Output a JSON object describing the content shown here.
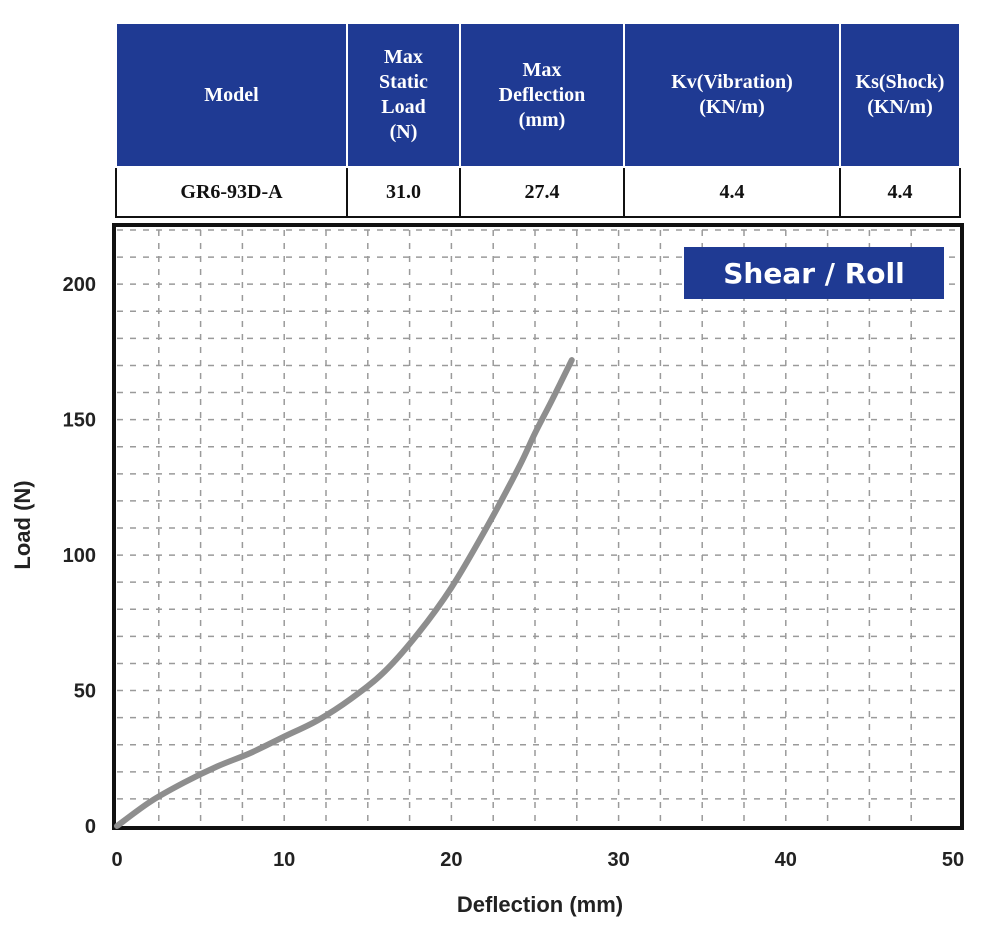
{
  "table": {
    "headers": [
      "Model",
      "Max\nStatic\nLoad\n(N)",
      "Max\nDeflection\n(mm)",
      "Kv(Vibration)\n(KN/m)",
      "Ks(Shock)\n(KN/m)"
    ],
    "row": [
      "GR6-93D-A",
      "31.0",
      "27.4",
      "4.4",
      "4.4"
    ]
  },
  "chart_data": {
    "type": "line",
    "badge": "Shear / Roll",
    "xlabel": "Deflection (mm)",
    "ylabel": "Load (N)",
    "xlim": [
      0,
      50
    ],
    "ylim": [
      0,
      220
    ],
    "xticks": [
      0,
      10,
      20,
      30,
      40,
      50
    ],
    "yticks": [
      0,
      50,
      100,
      150,
      200
    ],
    "grid": true,
    "series": [
      {
        "color": "#8e8e8e",
        "x": [
          0,
          2,
          4,
          6,
          8,
          10,
          12,
          14,
          16,
          18,
          20,
          22,
          24,
          25,
          26,
          27.2
        ],
        "y": [
          0,
          9,
          16,
          22,
          27,
          33,
          39,
          47,
          57,
          71,
          88,
          109,
          132,
          145,
          157,
          172
        ]
      }
    ]
  },
  "colors": {
    "header_bg": "#1f3a93",
    "badge_bg": "#1f3a93",
    "curve": "#8e8e8e"
  }
}
